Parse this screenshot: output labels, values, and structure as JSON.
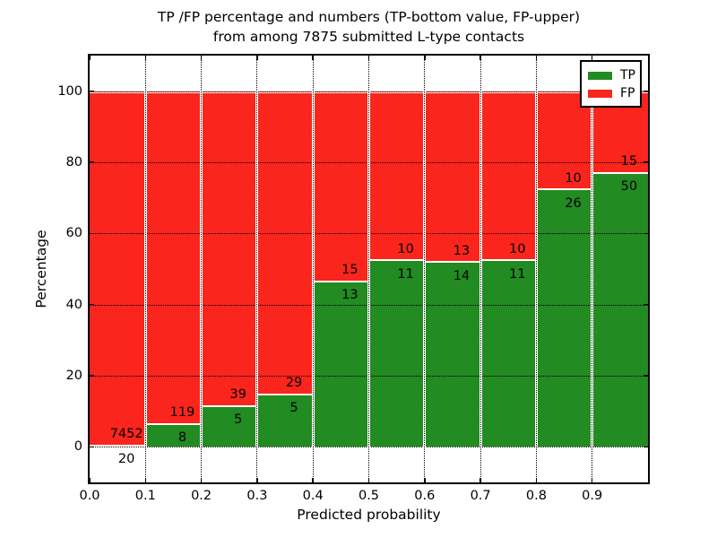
{
  "title": {
    "line1": "TP /FP percentage and numbers (TP-bottom value, FP-upper)",
    "line2": "from among 7875 submitted L-type contacts"
  },
  "axes": {
    "xlabel": "Predicted probability",
    "ylabel": "Percentage",
    "xtick_labels": [
      "0.0",
      "0.1",
      "0.2",
      "0.3",
      "0.4",
      "0.5",
      "0.6",
      "0.7",
      "0.8",
      "0.9"
    ],
    "ytick_labels": [
      "0",
      "20",
      "40",
      "60",
      "80",
      "100"
    ]
  },
  "legend": {
    "items": [
      {
        "label": "TP",
        "color": "#228b22"
      },
      {
        "label": "FP",
        "color": "#fa251c"
      }
    ]
  },
  "colors": {
    "tp_green": "#228b22",
    "fp_red": "#fa251c",
    "grid": "#000000",
    "bar_edge": "#ffffff",
    "text": "#000000"
  },
  "chart_data": {
    "type": "bar",
    "stacked": true,
    "normalized_to_percent": true,
    "title": "TP /FP percentage and numbers (TP-bottom value, FP-upper) from among 7875 submitted L-type contacts",
    "xlabel": "Predicted probability",
    "ylabel": "Percentage",
    "xlim": [
      0.0,
      1.0
    ],
    "ylim": [
      -10,
      110
    ],
    "xticks": [
      0.0,
      0.1,
      0.2,
      0.3,
      0.4,
      0.5,
      0.6,
      0.7,
      0.8,
      0.9
    ],
    "yticks": [
      0,
      20,
      40,
      60,
      80,
      100
    ],
    "grid": "dotted, both axes, drawn over bars",
    "legend_position": "upper right",
    "total_contacts": 7875,
    "bins": [
      {
        "range": [
          0.0,
          0.1
        ],
        "tp": 20,
        "fp": 7452
      },
      {
        "range": [
          0.1,
          0.2
        ],
        "tp": 8,
        "fp": 119
      },
      {
        "range": [
          0.2,
          0.3
        ],
        "tp": 5,
        "fp": 39
      },
      {
        "range": [
          0.3,
          0.4
        ],
        "tp": 5,
        "fp": 29
      },
      {
        "range": [
          0.4,
          0.5
        ],
        "tp": 13,
        "fp": 15
      },
      {
        "range": [
          0.5,
          0.6
        ],
        "tp": 11,
        "fp": 10
      },
      {
        "range": [
          0.6,
          0.7
        ],
        "tp": 14,
        "fp": 13
      },
      {
        "range": [
          0.7,
          0.8
        ],
        "tp": 11,
        "fp": 10
      },
      {
        "range": [
          0.8,
          0.9
        ],
        "tp": 26,
        "fp": 10
      },
      {
        "range": [
          0.9,
          1.0
        ],
        "tp": 50,
        "fp": 15
      }
    ],
    "series": [
      {
        "name": "TP",
        "values": [
          20,
          8,
          5,
          5,
          13,
          11,
          14,
          11,
          26,
          50
        ],
        "color": "#228b22",
        "role": "bottom segment, label below boundary"
      },
      {
        "name": "FP",
        "values": [
          7452,
          119,
          39,
          29,
          15,
          10,
          13,
          10,
          10,
          15
        ],
        "color": "#fa251c",
        "role": "top segment, label above boundary"
      }
    ],
    "tp_percent_of_bin": [
      0.27,
      6.3,
      11.36,
      14.71,
      46.43,
      52.38,
      51.85,
      52.38,
      72.22,
      76.92
    ]
  }
}
